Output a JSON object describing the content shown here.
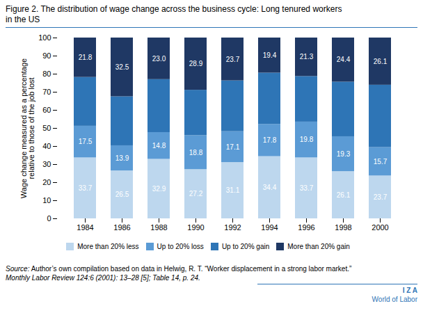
{
  "chart_data": {
    "type": "bar",
    "stacked": true,
    "title": "Figure 2. The distribution of wage change across the business cycle: Long tenured workers\nin the US",
    "categories": [
      "1984",
      "1986",
      "1988",
      "1990",
      "1992",
      "1994",
      "1996",
      "1998",
      "2000"
    ],
    "series": [
      {
        "name": "More than 20% less",
        "color": "#bdd7ee",
        "values": [
          33.7,
          26.5,
          32.9,
          27.2,
          31.1,
          34.4,
          33.7,
          26.1,
          23.7
        ],
        "data_labels": true,
        "value_labels": [
          "33.7",
          "26.5",
          "32.9",
          "27.2",
          "31.1",
          "34.4",
          "33.7",
          "26.1",
          "23.7"
        ]
      },
      {
        "name": "Up to 20% loss",
        "color": "#5b9bd5",
        "values": [
          17.5,
          13.9,
          14.8,
          18.8,
          17.1,
          17.8,
          19.8,
          19.3,
          15.7
        ],
        "data_labels": true,
        "value_labels": [
          "17.5",
          "13.9",
          "14.8",
          "18.8",
          "17.1",
          "17.8",
          "19.8",
          "19.3",
          "15.7"
        ]
      },
      {
        "name": "Up to 20% gain",
        "color": "#2e75b6",
        "values": [
          27.0,
          27.1,
          29.3,
          25.1,
          28.1,
          28.4,
          25.2,
          30.2,
          34.5
        ],
        "data_labels": false
      },
      {
        "name": "More than 20% gain",
        "color": "#1f3864",
        "values": [
          21.8,
          32.5,
          23.0,
          28.9,
          23.7,
          19.4,
          21.3,
          24.4,
          26.1
        ],
        "data_labels": true,
        "value_labels": [
          "21.8",
          "32.5",
          "23.0",
          "28.9",
          "23.7",
          "19.4",
          "21.3",
          "24.4",
          "26.1"
        ]
      }
    ],
    "ylabel": "Wage change measured as a percentage\nrelative to those of the job lost",
    "ylim": [
      0,
      100
    ],
    "yticks": [
      0,
      10,
      20,
      30,
      40,
      50,
      60,
      70,
      80,
      90,
      100
    ],
    "grid": false,
    "legend": "bottom",
    "caption": [
      "Source: Author’s own compilation based on data in Helwig, R. T. “Worker displacement in a strong labor market.”",
      "Monthly Labor Review 124:6 (2001): 13–28 [5]; Table 14, p. 24."
    ],
    "annotations": [
      "I Z A",
      "World of Labor"
    ]
  }
}
